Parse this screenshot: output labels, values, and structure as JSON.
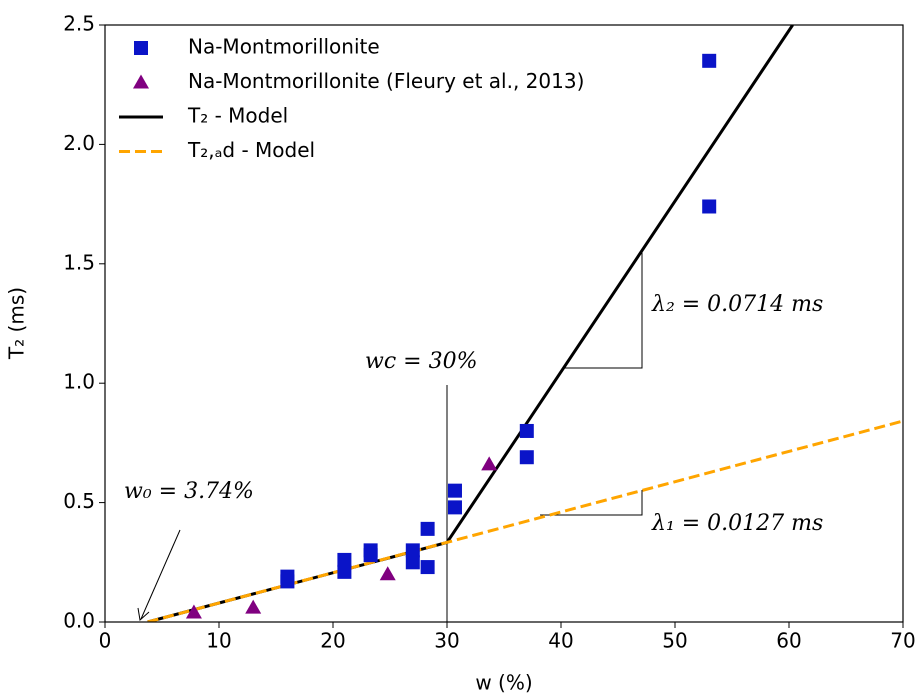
{
  "chart_data": {
    "type": "scatter",
    "x_label": "w (%)",
    "y_label": "T₂ (ms)",
    "xlim": [
      0,
      70
    ],
    "ylim": [
      0,
      2.5
    ],
    "xticks": [
      0,
      10,
      20,
      30,
      40,
      50,
      60,
      70
    ],
    "yticks": [
      {
        "value": 0,
        "label": "0.0"
      },
      0.5,
      {
        "value": 1,
        "label": "1.0"
      },
      1.5,
      {
        "value": 2,
        "label": "2.0"
      },
      2.5
    ],
    "legend": "upper left",
    "series": [
      {
        "name": "Na-Montmorillonite",
        "kind": "square",
        "color": "#0a14c8",
        "x": [
          16,
          16,
          21,
          21,
          23.3,
          23.3,
          27,
          27,
          28.3,
          28.3,
          30.7,
          30.7,
          37,
          37,
          53,
          53
        ],
        "values": [
          0.17,
          0.19,
          0.26,
          0.21,
          0.3,
          0.28,
          0.3,
          0.25,
          0.39,
          0.23,
          0.55,
          0.48,
          0.8,
          0.69,
          2.35,
          1.74
        ]
      },
      {
        "name": "Na-Montmorillonite (Fleury et al., 2013)",
        "kind": "triangle",
        "color": "#800080",
        "x": [
          7.8,
          13,
          24.8,
          33.7
        ],
        "values": [
          0.04,
          0.06,
          0.2,
          0.66
        ]
      },
      {
        "name": "T₂ - Model",
        "kind": "line",
        "color": "#000000",
        "x": [
          3.74,
          30,
          60.32
        ],
        "values": [
          0,
          0.333,
          2.5
        ]
      },
      {
        "name": "T₂,ₐd - Model",
        "kind": "dashed",
        "color": "#ffa500",
        "x": [
          3.74,
          70
        ],
        "values": [
          0,
          0.8415
        ]
      }
    ],
    "annotations": [
      "wc = 30%",
      "w₀ = 3.74%",
      "λ₂ = 0.0714 ms",
      "λ₁ = 0.0127 ms"
    ]
  }
}
